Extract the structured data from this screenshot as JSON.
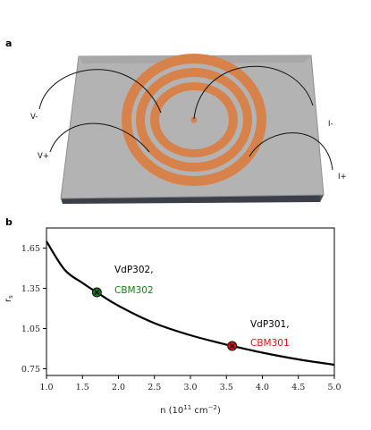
{
  "panel_a": {
    "letter": "a",
    "contacts": {
      "v_minus": "V-",
      "v_plus": "V+",
      "i_minus": "I-",
      "i_plus": "I+"
    },
    "colors": {
      "substrate": "#b3b3b3",
      "metal": "#d7824a"
    }
  },
  "panel_b": {
    "letter": "b"
  },
  "chart_data": {
    "type": "line",
    "xlabel_main": "n (10",
    "xlabel_exp": "11",
    "xlabel_unit": " cm",
    "xlabel_unit_exp": "−2",
    "xlabel_close": ")",
    "ylabel_main": "r",
    "ylabel_sub": "s",
    "xlim": [
      1.0,
      5.0
    ],
    "ylim": [
      0.7,
      1.8
    ],
    "xticks": [
      "1.0",
      "1.5",
      "2.0",
      "2.5",
      "3.0",
      "3.5",
      "4.0",
      "4.5",
      "5.0"
    ],
    "yticks": [
      "0.75",
      "1.05",
      "1.35",
      "1.65"
    ],
    "grid": false,
    "series": [
      {
        "x": [
          1.0,
          1.25,
          1.5,
          1.7,
          2.0,
          2.5,
          3.0,
          3.5,
          3.58,
          4.0,
          4.5,
          5.0
        ],
        "y": [
          1.7,
          1.49,
          1.39,
          1.32,
          1.22,
          1.09,
          1.0,
          0.93,
          0.92,
          0.87,
          0.82,
          0.78
        ],
        "color": "#000000"
      }
    ],
    "points": [
      {
        "x": 1.7,
        "y": 1.32,
        "label": "VdP302,",
        "sublabel": "CBM302",
        "color": "#1a7a1a",
        "sublabel_color": "#1a7a1a"
      },
      {
        "x": 3.58,
        "y": 0.92,
        "label": "VdP301,",
        "sublabel": "CBM301",
        "color": "#e01010",
        "sublabel_color": "#e01010"
      }
    ]
  }
}
